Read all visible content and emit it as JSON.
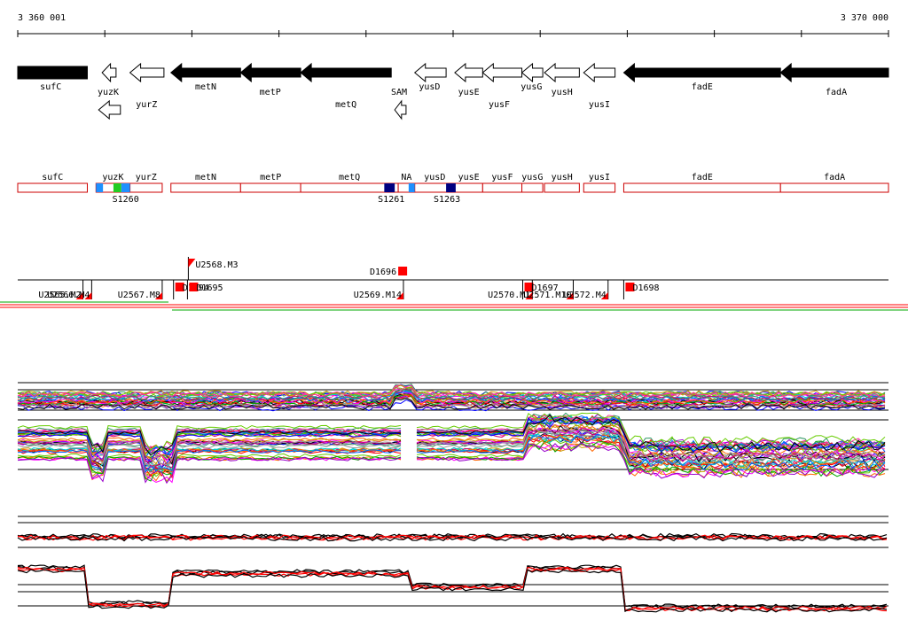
{
  "ruler": {
    "start_label": "3 360 001",
    "end_label": "3 370 000",
    "start": 3360001,
    "end": 3370000
  },
  "genes": [
    {
      "name": "sufC",
      "strand": "+",
      "filled": true,
      "start": 3360001,
      "end": 3360800
    },
    {
      "name": "yuzK",
      "strand": "-",
      "filled": false,
      "start": 3360970,
      "end": 3361130
    },
    {
      "name": "yuzK",
      "strand": "-",
      "filled": false,
      "start": 3360930,
      "end": 3361180
    },
    {
      "name": "yurZ",
      "strand": "-",
      "filled": false,
      "start": 3361290,
      "end": 3361680
    },
    {
      "name": "metN",
      "strand": "-",
      "filled": true,
      "start": 3361760,
      "end": 3362560
    },
    {
      "name": "metP",
      "strand": "-",
      "filled": true,
      "start": 3362560,
      "end": 3363250
    },
    {
      "name": "metQ",
      "strand": "-",
      "filled": true,
      "start": 3363250,
      "end": 3364290
    },
    {
      "name": "SAM",
      "strand": "-",
      "filled": false,
      "start": 3364330,
      "end": 3364460
    },
    {
      "name": "yusD",
      "strand": "-",
      "filled": false,
      "start": 3364560,
      "end": 3364920
    },
    {
      "name": "yusE",
      "strand": "-",
      "filled": false,
      "start": 3365020,
      "end": 3365340
    },
    {
      "name": "yusF",
      "strand": "-",
      "filled": false,
      "start": 3365340,
      "end": 3365790
    },
    {
      "name": "yusG",
      "strand": "-",
      "filled": false,
      "start": 3365790,
      "end": 3366030
    },
    {
      "name": "yusH",
      "strand": "-",
      "filled": false,
      "start": 3366050,
      "end": 3366450
    },
    {
      "name": "yusI",
      "strand": "-",
      "filled": false,
      "start": 3366500,
      "end": 3366860
    },
    {
      "name": "fadE",
      "strand": "-",
      "filled": true,
      "start": 3366960,
      "end": 3368760
    },
    {
      "name": "fadA",
      "strand": "-",
      "filled": true,
      "start": 3368760,
      "end": 3370000
    }
  ],
  "gene_labels": [
    {
      "name": "sufC",
      "pos": 3360380,
      "row": 1
    },
    {
      "name": "yuzK",
      "pos": 3361040,
      "row": 2
    },
    {
      "name": "yurZ",
      "pos": 3361480,
      "row": 3
    },
    {
      "name": "metN",
      "pos": 3362160,
      "row": 1
    },
    {
      "name": "metP",
      "pos": 3362900,
      "row": 2
    },
    {
      "name": "metQ",
      "pos": 3363770,
      "row": 3
    },
    {
      "name": "SAM",
      "pos": 3364380,
      "row": 2
    },
    {
      "name": "yusD",
      "pos": 3364730,
      "row": 1
    },
    {
      "name": "yusE",
      "pos": 3365180,
      "row": 2
    },
    {
      "name": "yusF",
      "pos": 3365530,
      "row": 3
    },
    {
      "name": "yusG",
      "pos": 3365900,
      "row": 1
    },
    {
      "name": "yusH",
      "pos": 3366250,
      "row": 2
    },
    {
      "name": "yusI",
      "pos": 3366680,
      "row": 3
    },
    {
      "name": "fadE",
      "pos": 3367860,
      "row": 1
    },
    {
      "name": "fadA",
      "pos": 3369400,
      "row": 2
    }
  ],
  "segments": [
    {
      "name": "sufC",
      "start": 3360001,
      "end": 3360800
    },
    {
      "name": "yuzK",
      "start": 3360900,
      "end": 3361290
    },
    {
      "name": "yurZ",
      "start": 3361290,
      "end": 3361660
    },
    {
      "name": "metN",
      "start": 3361760,
      "end": 3362560
    },
    {
      "name": "metP",
      "start": 3362560,
      "end": 3363250
    },
    {
      "name": "metQ",
      "start": 3363250,
      "end": 3364370
    },
    {
      "name": "NA",
      "start": 3364370,
      "end": 3364560
    },
    {
      "name": "yusD",
      "start": 3364560,
      "end": 3365020
    },
    {
      "name": "yusE",
      "start": 3365020,
      "end": 3365340
    },
    {
      "name": "yusF",
      "start": 3365340,
      "end": 3365790
    },
    {
      "name": "yusG",
      "start": 3365790,
      "end": 3366030
    },
    {
      "name": "yusH",
      "start": 3366050,
      "end": 3366450
    },
    {
      "name": "yusI",
      "start": 3366500,
      "end": 3366860
    },
    {
      "name": "fadE",
      "start": 3366960,
      "end": 3368760
    },
    {
      "name": "fadA",
      "start": 3368760,
      "end": 3370000
    }
  ],
  "segment_blocks": [
    {
      "start": 3360900,
      "end": 3360980,
      "color": "#1E90FF"
    },
    {
      "start": 3361100,
      "end": 3361190,
      "color": "#22CC22"
    },
    {
      "start": 3361190,
      "end": 3361290,
      "color": "#1E90FF"
    },
    {
      "start": 3364210,
      "end": 3364330,
      "color": "#000080"
    },
    {
      "start": 3364490,
      "end": 3364560,
      "color": "#1E90FF"
    },
    {
      "start": 3364920,
      "end": 3365030,
      "color": "#000080"
    }
  ],
  "segment_ids": [
    {
      "label": "S1260",
      "pos": 3361240
    },
    {
      "label": "S1261",
      "pos": 3364290
    },
    {
      "label": "S1263",
      "pos": 3364930
    }
  ],
  "features": [
    {
      "label": "U2568.M3",
      "pos": 3361960,
      "row": "upper"
    },
    {
      "label": "D1696",
      "pos": 3364350,
      "row": "upper"
    },
    {
      "label": "U2565.M2",
      "pos": 3360750,
      "row": "lower"
    },
    {
      "label": "U2566.M4",
      "pos": 3360850,
      "row": "lower"
    },
    {
      "label": "U2567.M8",
      "pos": 3361660,
      "row": "lower"
    },
    {
      "label": "D1694",
      "pos": 3361790,
      "row": "lower"
    },
    {
      "label": "D1695",
      "pos": 3361950,
      "row": "lower"
    },
    {
      "label": "U2569.M14",
      "pos": 3364430,
      "row": "lower"
    },
    {
      "label": "D1697",
      "pos": 3365800,
      "row": "lower"
    },
    {
      "label": "U2570.M1",
      "pos": 3365910,
      "row": "lower"
    },
    {
      "label": "U2571.M10",
      "pos": 3366380,
      "row": "lower"
    },
    {
      "label": "U2572.M4",
      "pos": 3366780,
      "row": "lower"
    },
    {
      "label": "D1698",
      "pos": 3366960,
      "row": "lower"
    }
  ],
  "colors": {
    "gene_filled": "#000000",
    "segment_border": "#CC0000",
    "feature_red": "#FF0000",
    "track_green": "#00AA00"
  }
}
